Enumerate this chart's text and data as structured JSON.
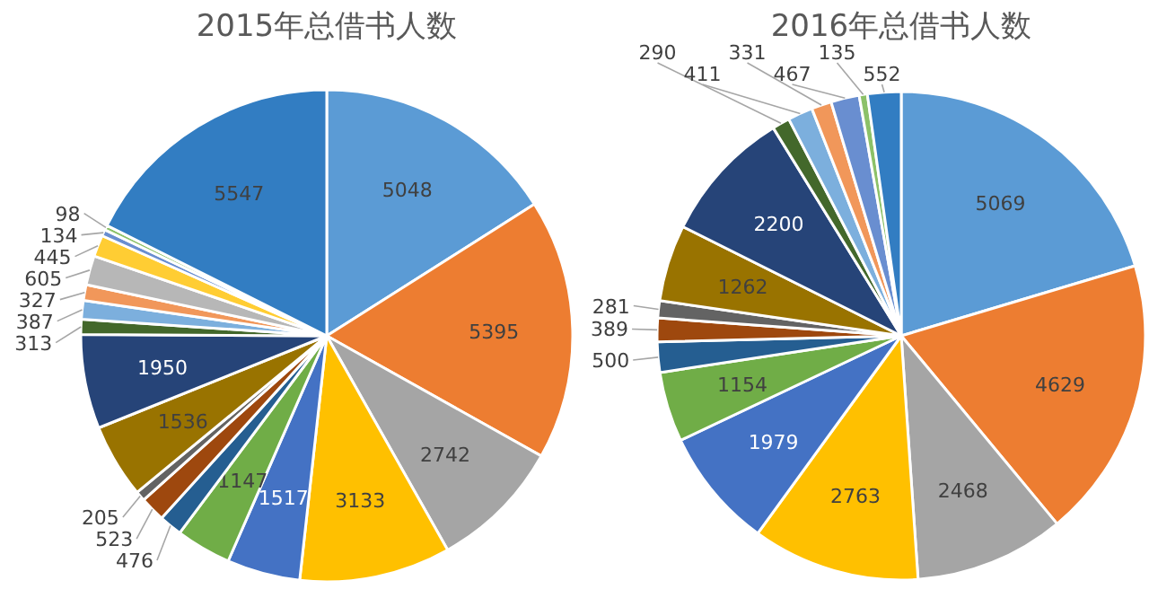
{
  "chart_data": [
    {
      "type": "pie",
      "title": "2015年总借书人数",
      "data_labels": true,
      "categories": [
        null,
        null,
        null,
        null,
        null,
        null,
        null,
        null,
        null,
        null,
        null,
        null,
        null,
        null,
        null,
        null,
        null,
        null,
        null
      ],
      "values": [
        5048,
        5395,
        2742,
        3133,
        1517,
        1147,
        476,
        523,
        205,
        1536,
        1950,
        313,
        387,
        327,
        605,
        445,
        134,
        98,
        5547
      ],
      "colors": [
        "#5b9bd5",
        "#ed7d31",
        "#a5a5a5",
        "#ffc000",
        "#4472c4",
        "#70ad47",
        "#255e91",
        "#9e480e",
        "#636363",
        "#997300",
        "#264478",
        "#43682b",
        "#7cafdd",
        "#f1975a",
        "#b7b7b7",
        "#ffcd33",
        "#698ed0",
        "#8cc168",
        "#327dc2"
      ]
    },
    {
      "type": "pie",
      "title": "2016年总借书人数",
      "data_labels": true,
      "categories": [
        null,
        null,
        null,
        null,
        null,
        null,
        null,
        null,
        null,
        null,
        null,
        null,
        null,
        null,
        null,
        null,
        null
      ],
      "values": [
        5069,
        4629,
        2468,
        2763,
        1979,
        1154,
        500,
        389,
        281,
        1262,
        2200,
        290,
        411,
        331,
        467,
        135,
        552
      ],
      "colors": [
        "#5b9bd5",
        "#ed7d31",
        "#a5a5a5",
        "#ffc000",
        "#4472c4",
        "#70ad47",
        "#255e91",
        "#9e480e",
        "#636363",
        "#997300",
        "#264478",
        "#43682b",
        "#7cafdd",
        "#f1975a",
        "#698ed0",
        "#8cc168",
        "#327dc2"
      ]
    }
  ]
}
